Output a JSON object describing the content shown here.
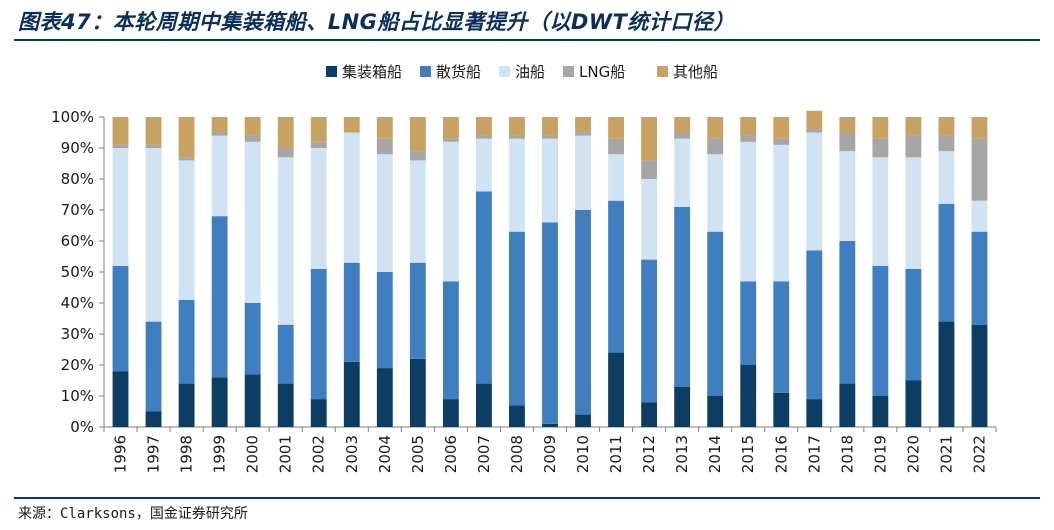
{
  "title": "图表47：本轮周期中集装箱船、LNG船占比显著提升（以DWT统计口径）",
  "source": "来源：Clarksons，国金证券研究所",
  "chart_data": {
    "type": "bar",
    "stacked": true,
    "categories": [
      "1996",
      "1997",
      "1998",
      "1999",
      "2000",
      "2001",
      "2002",
      "2003",
      "2004",
      "2005",
      "2006",
      "2007",
      "2008",
      "2009",
      "2010",
      "2011",
      "2012",
      "2013",
      "2014",
      "2015",
      "2016",
      "2017",
      "2018",
      "2019",
      "2020",
      "2021",
      "2022"
    ],
    "series": [
      {
        "name": "集装箱船",
        "color": "#0d3d63",
        "values": [
          18,
          5,
          14,
          16,
          17,
          14,
          9,
          21,
          19,
          22,
          9,
          14,
          7,
          1,
          4,
          24,
          8,
          13,
          10,
          20,
          11,
          9,
          14,
          10,
          15,
          34,
          33
        ]
      },
      {
        "name": "散货船",
        "color": "#3f7fbf",
        "values": [
          34,
          29,
          27,
          52,
          23,
          19,
          42,
          32,
          31,
          31,
          38,
          62,
          56,
          65,
          66,
          49,
          46,
          58,
          53,
          27,
          36,
          48,
          46,
          42,
          36,
          38,
          30
        ]
      },
      {
        "name": "油船",
        "color": "#cfe3f2",
        "values": [
          38,
          56,
          45,
          26,
          52,
          54,
          39,
          42,
          38,
          33,
          45,
          17,
          30,
          27,
          24,
          15,
          26,
          22,
          25,
          45,
          44,
          38,
          29,
          35,
          36,
          17,
          10
        ]
      },
      {
        "name": "LNG船",
        "color": "#a6a6a6",
        "values": [
          1,
          1,
          1,
          1,
          2,
          3,
          2,
          0,
          5,
          3,
          1,
          1,
          1,
          1,
          1,
          5,
          6,
          2,
          5,
          2,
          2,
          1,
          6,
          6,
          7,
          5,
          20
        ]
      },
      {
        "name": "其他船",
        "color": "#c7a262",
        "values": [
          9,
          9,
          13,
          5,
          6,
          10,
          8,
          5,
          7,
          11,
          7,
          6,
          6,
          6,
          5,
          7,
          14,
          5,
          7,
          6,
          7,
          6,
          5,
          7,
          6,
          6,
          7
        ]
      }
    ],
    "ylim": [
      0,
      100
    ],
    "yticks": [
      "0%",
      "10%",
      "20%",
      "30%",
      "40%",
      "50%",
      "60%",
      "70%",
      "80%",
      "90%",
      "100%"
    ],
    "legend_position": "top",
    "grid": false
  }
}
